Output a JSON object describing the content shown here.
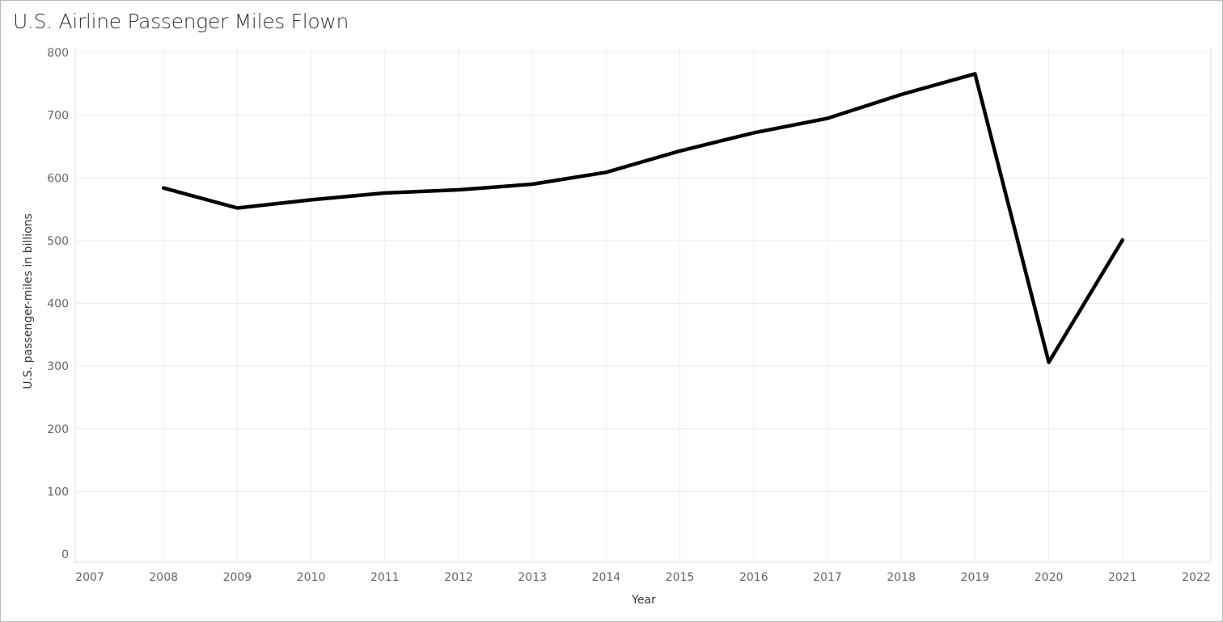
{
  "chart_data": {
    "type": "line",
    "title": "U.S. Airline Passenger Miles Flown",
    "xlabel": "Year",
    "ylabel": "U.S. passenger-miles in billions",
    "x": [
      2008,
      2009,
      2010,
      2011,
      2012,
      2013,
      2014,
      2015,
      2016,
      2017,
      2018,
      2019,
      2020,
      2021
    ],
    "y": [
      584,
      552,
      565,
      576,
      581,
      590,
      609,
      643,
      672,
      695,
      733,
      766,
      306,
      501
    ],
    "xlim": [
      2007,
      2022
    ],
    "ylim": [
      0,
      800
    ],
    "x_ticks": [
      "2007",
      "2008",
      "2009",
      "2010",
      "2011",
      "2012",
      "2013",
      "2014",
      "2015",
      "2016",
      "2017",
      "2018",
      "2019",
      "2020",
      "2021",
      "2022"
    ],
    "y_ticks": [
      "0",
      "100",
      "200",
      "300",
      "400",
      "500",
      "600",
      "700",
      "800"
    ],
    "grid": true,
    "line_color": "#000000",
    "grid_color": "#ececec"
  }
}
